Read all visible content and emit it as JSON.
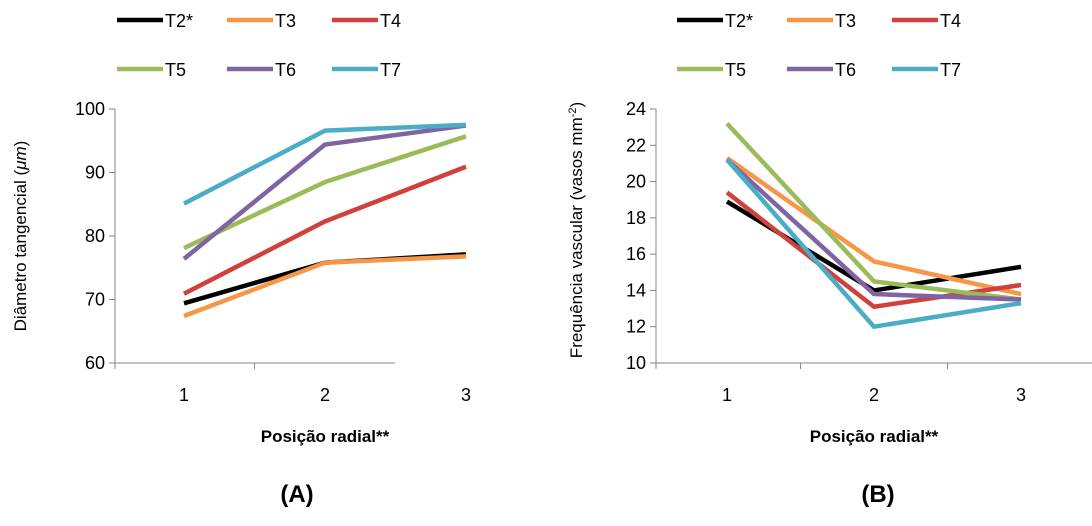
{
  "chart_data": [
    {
      "type": "line",
      "panel_label": "(A)",
      "xlabel": "Posição radial**",
      "ylabel_parts": [
        "Diâmetro tangencial (",
        "μm",
        ")"
      ],
      "x": [
        1,
        2,
        3
      ],
      "x_tick_labels": [
        "1",
        "2",
        "3"
      ],
      "ylim": [
        60,
        100
      ],
      "y_ticks": [
        60,
        70,
        80,
        90,
        100
      ],
      "grid": false,
      "legend_position": "top",
      "series": [
        {
          "name": "T2*",
          "color": "#000000",
          "values": [
            69.4,
            75.8,
            77.1
          ]
        },
        {
          "name": "T3",
          "color": "#f79646",
          "values": [
            67.4,
            75.8,
            76.8
          ]
        },
        {
          "name": "T4",
          "color": "#d0403c",
          "values": [
            70.9,
            82.3,
            90.9
          ]
        },
        {
          "name": "T5",
          "color": "#9bbb59",
          "values": [
            78.1,
            88.5,
            95.7
          ]
        },
        {
          "name": "T6",
          "color": "#8064a2",
          "values": [
            76.4,
            94.4,
            97.4
          ]
        },
        {
          "name": "T7",
          "color": "#4bacc6",
          "values": [
            85.1,
            96.6,
            97.5
          ]
        }
      ]
    },
    {
      "type": "line",
      "panel_label": "(B)",
      "xlabel": "Posição radial**",
      "ylabel_parts": [
        "Frequência vascular (vasos mm",
        "-2",
        ")"
      ],
      "x": [
        1,
        2,
        3
      ],
      "x_tick_labels": [
        "1",
        "2",
        "3"
      ],
      "ylim": [
        10,
        24
      ],
      "y_ticks": [
        10,
        12,
        14,
        16,
        18,
        20,
        22,
        24
      ],
      "grid": false,
      "legend_position": "top",
      "series": [
        {
          "name": "T2*",
          "color": "#000000",
          "values": [
            18.9,
            14.0,
            15.3
          ]
        },
        {
          "name": "T3",
          "color": "#f79646",
          "values": [
            21.3,
            15.6,
            13.8
          ]
        },
        {
          "name": "T4",
          "color": "#d0403c",
          "values": [
            19.4,
            13.1,
            14.3
          ]
        },
        {
          "name": "T5",
          "color": "#9bbb59",
          "values": [
            23.2,
            14.5,
            13.5
          ]
        },
        {
          "name": "T6",
          "color": "#8064a2",
          "values": [
            21.2,
            13.8,
            13.5
          ]
        },
        {
          "name": "T7",
          "color": "#4bacc6",
          "values": [
            21.2,
            12.0,
            13.3
          ]
        }
      ]
    }
  ]
}
